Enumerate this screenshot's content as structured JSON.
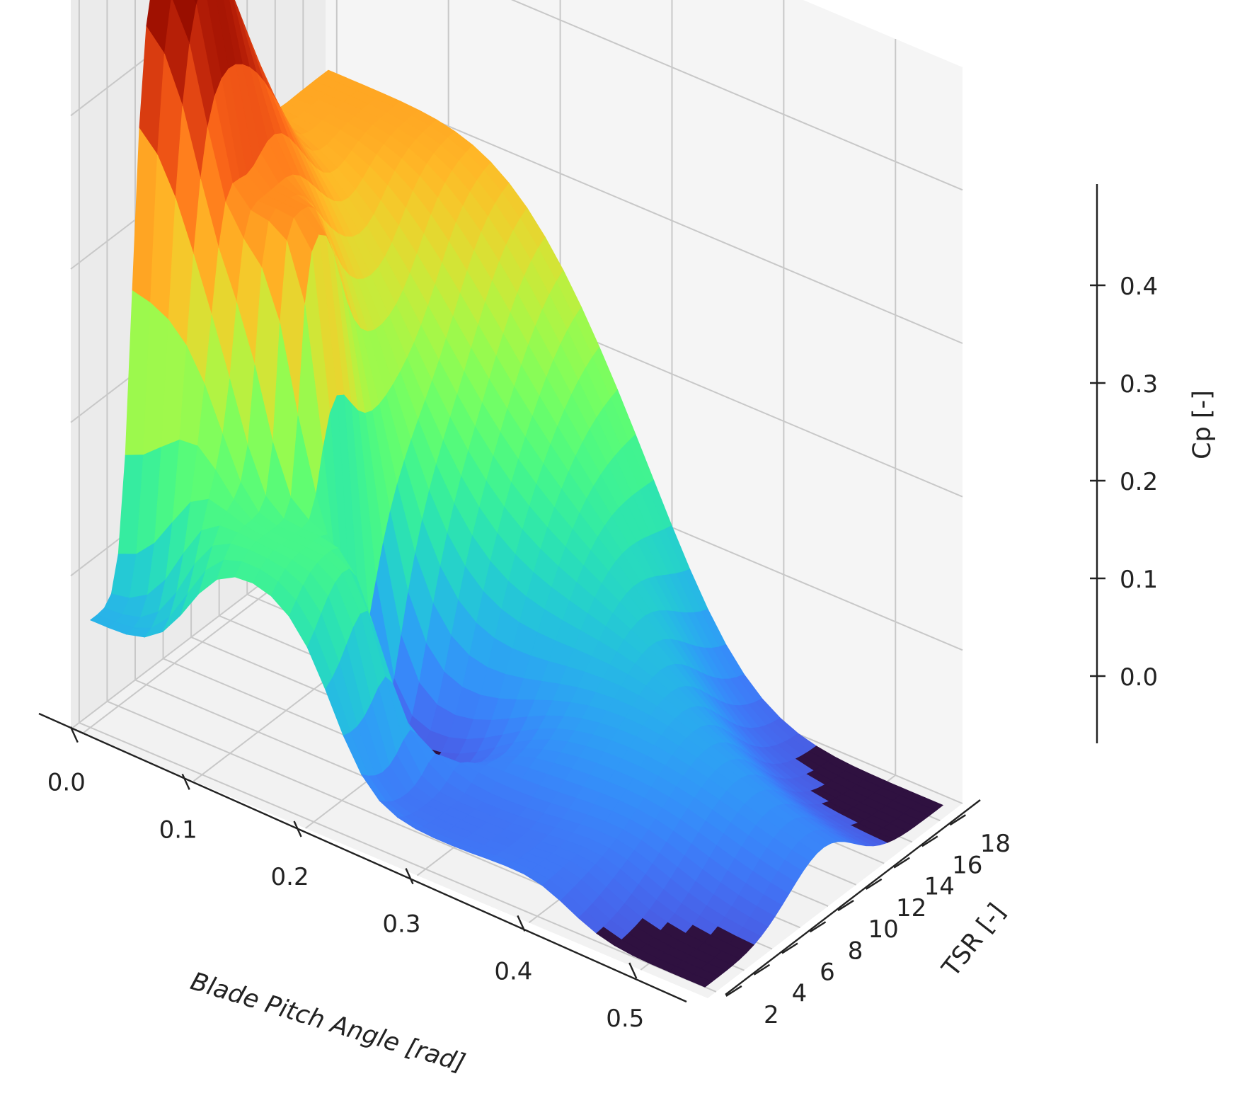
{
  "chart_data": {
    "type": "surface3d",
    "title": "",
    "xlabel": "Blade Pitch Angle [rad]",
    "ylabel": "TSR [-]",
    "zlabel": "Cp [-]",
    "xlim": [
      -0.01,
      0.56
    ],
    "ylim": [
      1.4,
      19.6
    ],
    "zlim": [
      0.0,
      0.48
    ],
    "x_ticks": [
      "0.0",
      "0.1",
      "0.2",
      "0.3",
      "0.4",
      "0.5"
    ],
    "y_ticks": [
      "2",
      "4",
      "6",
      "8",
      "10",
      "12",
      "14",
      "16",
      "18"
    ],
    "z_ticks": [
      "0.0",
      "0.1",
      "0.2",
      "0.3",
      "0.4"
    ],
    "colormap": "turbo",
    "floor_color": "#2f1140",
    "grid": true,
    "surface_samples": [
      {
        "pitch": 0.0,
        "tsr": 2,
        "cp": 0.07
      },
      {
        "pitch": 0.0,
        "tsr": 8,
        "cp": 0.47
      },
      {
        "pitch": 0.0,
        "tsr": 19,
        "cp": 0.31
      },
      {
        "pitch": 0.1,
        "tsr": 8,
        "cp": 0.33
      },
      {
        "pitch": 0.15,
        "tsr": 5,
        "cp": 0.15
      },
      {
        "pitch": 0.2,
        "tsr": 8,
        "cp": 0.0
      },
      {
        "pitch": 0.3,
        "tsr": 4,
        "cp": 0.02
      },
      {
        "pitch": 0.55,
        "tsr": 2,
        "cp": 0.0
      },
      {
        "pitch": 0.55,
        "tsr": 19,
        "cp": 0.0
      }
    ]
  }
}
